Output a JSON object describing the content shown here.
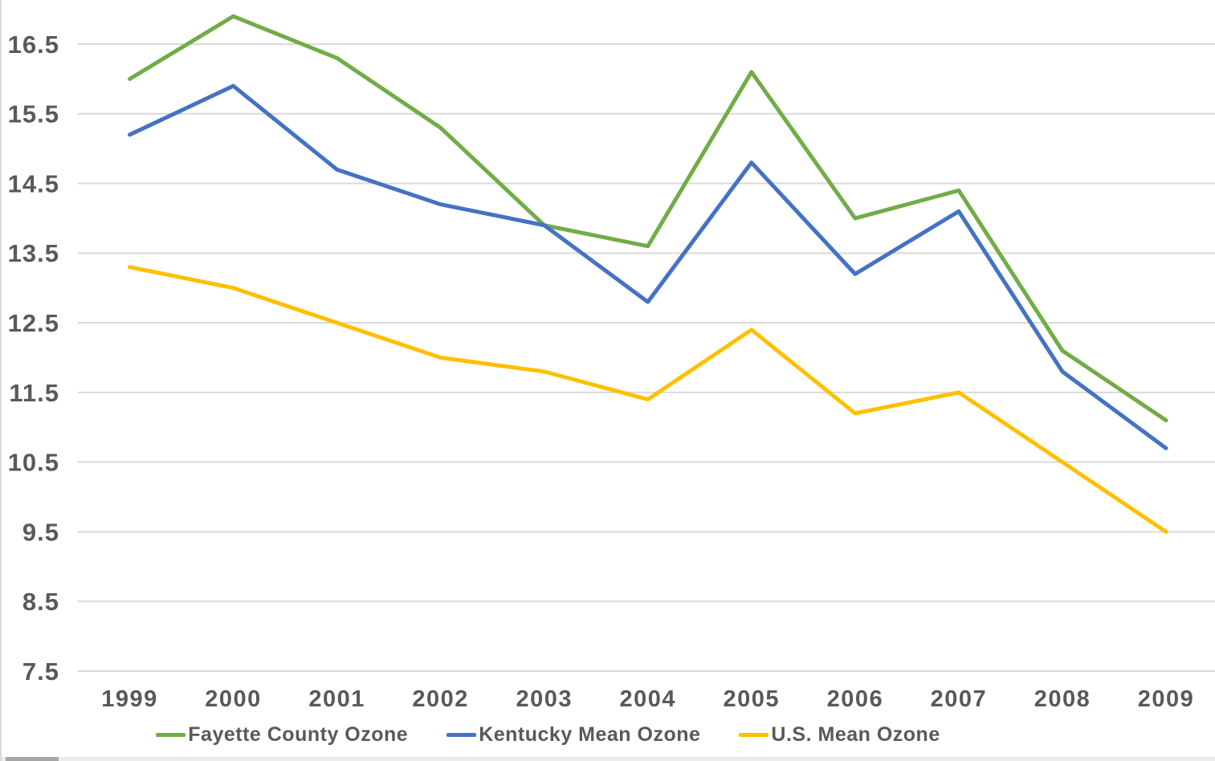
{
  "chart_data": {
    "type": "line",
    "title": "",
    "xlabel": "",
    "ylabel": "",
    "categories": [
      "1999",
      "2000",
      "2001",
      "2002",
      "2003",
      "2004",
      "2005",
      "2006",
      "2007",
      "2008",
      "2009"
    ],
    "series": [
      {
        "name": "Fayette County Ozone",
        "color": "#70AD47",
        "values": [
          16.0,
          16.9,
          16.3,
          15.3,
          13.9,
          13.6,
          16.1,
          14.0,
          14.4,
          12.1,
          11.1
        ]
      },
      {
        "name": "Kentucky Mean Ozone",
        "color": "#4472C4",
        "values": [
          15.2,
          15.9,
          14.7,
          14.2,
          13.9,
          12.8,
          14.8,
          13.2,
          14.1,
          11.8,
          10.7
        ]
      },
      {
        "name": "U.S. Mean Ozone",
        "color": "#FFC000",
        "values": [
          13.3,
          13.0,
          12.5,
          12.0,
          11.8,
          11.4,
          12.4,
          11.2,
          11.5,
          10.5,
          9.5
        ]
      }
    ],
    "yticks": [
      7.5,
      8.5,
      9.5,
      10.5,
      11.5,
      12.5,
      13.5,
      14.5,
      15.5,
      16.5
    ],
    "ylim": [
      7.5,
      17.1
    ],
    "grid": "horizontal",
    "legend_position": "bottom"
  },
  "style": {
    "text_color": "#595959",
    "gridline_color": "#D9D9D9",
    "background": "#FFFFFF"
  }
}
